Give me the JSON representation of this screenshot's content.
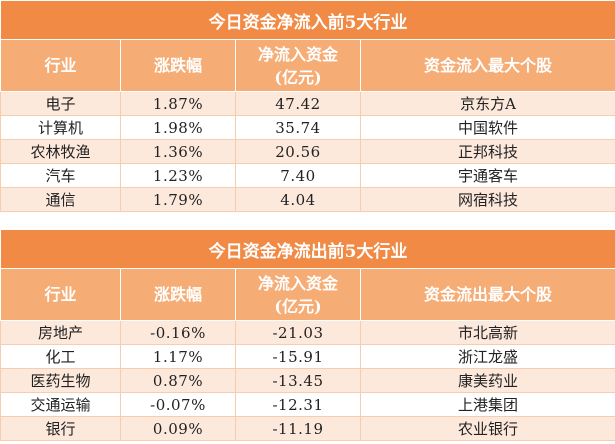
{
  "colors": {
    "title_bg": "#f08a45",
    "header_bg": "#f5ac75",
    "stripe_bg": "#fde9dc",
    "border": "#f6cdaf",
    "header_text": "#ffffff"
  },
  "inflow": {
    "title": "今日资金净流入前5大行业",
    "headers": {
      "industry": "行业",
      "change": "涨跌幅",
      "flow_line1": "净流入资金",
      "flow_line2": "(亿元)",
      "top_stock": "资金流入最大个股"
    },
    "rows": [
      {
        "industry": "电子",
        "change": "1.87%",
        "flow": "47.42",
        "stock": "京东方A"
      },
      {
        "industry": "计算机",
        "change": "1.98%",
        "flow": "35.74",
        "stock": "中国软件"
      },
      {
        "industry": "农林牧渔",
        "change": "1.36%",
        "flow": "20.56",
        "stock": "正邦科技"
      },
      {
        "industry": "汽车",
        "change": "1.23%",
        "flow": "7.40",
        "stock": "宇通客车"
      },
      {
        "industry": "通信",
        "change": "1.79%",
        "flow": "4.04",
        "stock": "网宿科技"
      }
    ]
  },
  "outflow": {
    "title": "今日资金净流出前5大行业",
    "headers": {
      "industry": "行业",
      "change": "涨跌幅",
      "flow_line1": "净流入资金",
      "flow_line2": "(亿元)",
      "top_stock": "资金流出最大个股"
    },
    "rows": [
      {
        "industry": "房地产",
        "change": "-0.16%",
        "flow": "-21.03",
        "stock": "市北高新"
      },
      {
        "industry": "化工",
        "change": "1.17%",
        "flow": "-15.91",
        "stock": "浙江龙盛"
      },
      {
        "industry": "医药生物",
        "change": "0.87%",
        "flow": "-13.45",
        "stock": "康美药业"
      },
      {
        "industry": "交通运输",
        "change": "-0.07%",
        "flow": "-12.31",
        "stock": "上港集团"
      },
      {
        "industry": "银行",
        "change": "0.09%",
        "flow": "-11.19",
        "stock": "农业银行"
      }
    ]
  }
}
